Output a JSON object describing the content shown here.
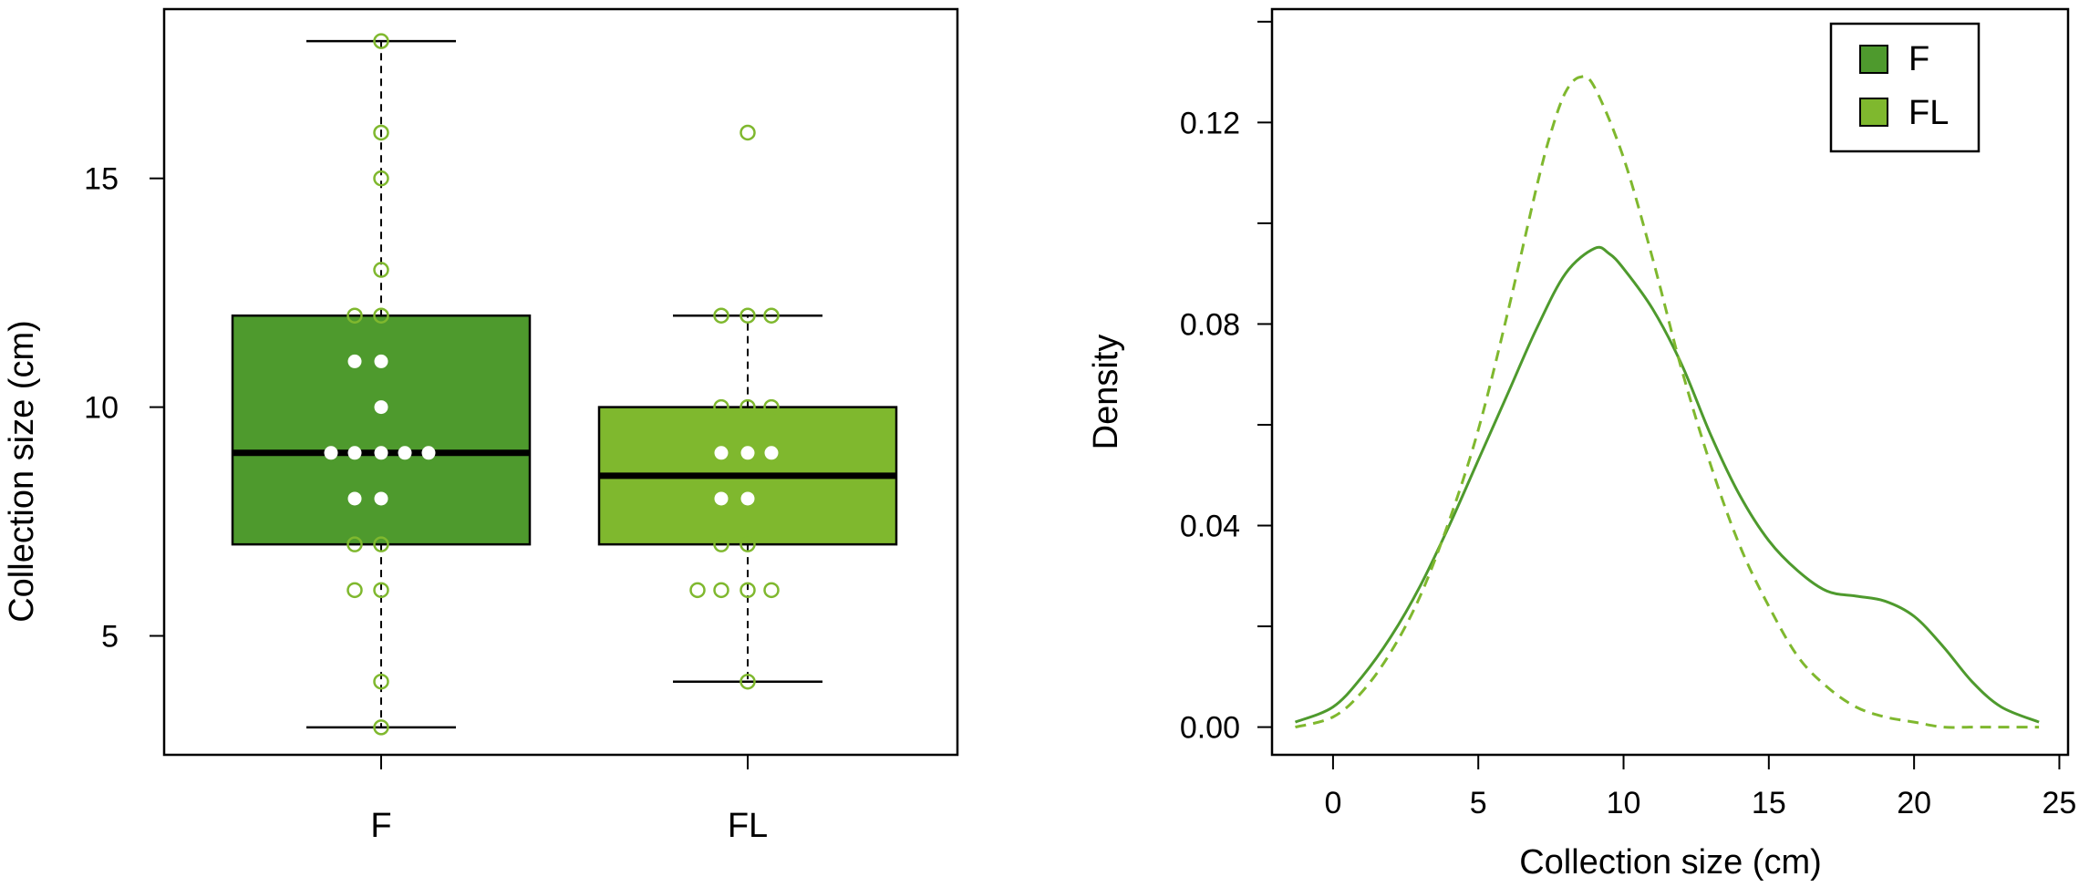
{
  "chart_data": [
    {
      "type": "box",
      "ylabel": "Collection size (cm)",
      "ylim": [
        2.4,
        18.7
      ],
      "yticks": [
        5,
        10,
        15
      ],
      "categories": [
        "F",
        "FL"
      ],
      "colors": {
        "F": "#4e9a2d",
        "FL": "#7fb82e",
        "point": "#7fb82e"
      },
      "boxes": [
        {
          "name": "F",
          "whisker_low": 3,
          "q1": 7,
          "median": 9,
          "q3": 12,
          "whisker_high": 18
        },
        {
          "name": "FL",
          "whisker_low": 4,
          "q1": 7,
          "median": 8.5,
          "q3": 10,
          "whisker_high": 12
        }
      ],
      "points": [
        {
          "group": "F",
          "values": [
            18,
            16,
            15,
            13,
            12,
            12,
            11,
            11,
            10,
            9,
            9,
            9,
            9,
            9,
            8,
            8,
            7,
            7,
            6,
            6,
            4,
            3
          ]
        },
        {
          "group": "FL",
          "values": [
            16,
            12,
            12,
            12,
            10,
            10,
            10,
            9,
            9,
            9,
            8,
            8,
            7,
            7,
            6,
            6,
            6,
            6,
            4
          ]
        }
      ]
    },
    {
      "type": "line",
      "xlabel": "Collection size (cm)",
      "ylabel": "Density",
      "xlim": [
        -2.1,
        25.3
      ],
      "ylim": [
        -0.0055,
        0.1425
      ],
      "xticks": [
        0,
        5,
        10,
        15,
        20,
        25
      ],
      "yticks": [
        0,
        0.04,
        0.08,
        0.12
      ],
      "ytick_labels": [
        "0.00",
        "0.04",
        "0.08",
        "0.12"
      ],
      "legend": {
        "position": "top-right",
        "entries": [
          "F",
          "FL"
        ]
      },
      "series": [
        {
          "name": "F",
          "line": "solid",
          "color": "#4e9a2d",
          "x": [
            -1.3,
            0,
            1,
            2,
            3,
            4,
            5,
            6,
            7,
            8,
            9,
            9.5,
            10,
            11,
            12,
            13,
            14,
            15,
            16,
            17,
            18,
            19,
            20,
            21,
            22,
            23,
            24.3
          ],
          "y": [
            0.001,
            0.004,
            0.01,
            0.018,
            0.028,
            0.04,
            0.053,
            0.066,
            0.079,
            0.09,
            0.095,
            0.094,
            0.091,
            0.083,
            0.072,
            0.058,
            0.046,
            0.037,
            0.031,
            0.027,
            0.026,
            0.025,
            0.022,
            0.016,
            0.009,
            0.004,
            0.001
          ]
        },
        {
          "name": "FL",
          "line": "dashed",
          "color": "#7fb82e",
          "x": [
            -1.3,
            0,
            1,
            2,
            3,
            4,
            5,
            6,
            7,
            7.5,
            8,
            8.5,
            9,
            10,
            11,
            12,
            13,
            14,
            15,
            16,
            17,
            18,
            19,
            20,
            21,
            22,
            23,
            24.3
          ],
          "y": [
            0.0,
            0.002,
            0.007,
            0.015,
            0.026,
            0.041,
            0.059,
            0.082,
            0.107,
            0.118,
            0.126,
            0.129,
            0.127,
            0.113,
            0.093,
            0.071,
            0.052,
            0.036,
            0.024,
            0.014,
            0.008,
            0.004,
            0.002,
            0.001,
            0.0,
            0.0,
            0.0,
            0.0
          ]
        }
      ]
    }
  ]
}
